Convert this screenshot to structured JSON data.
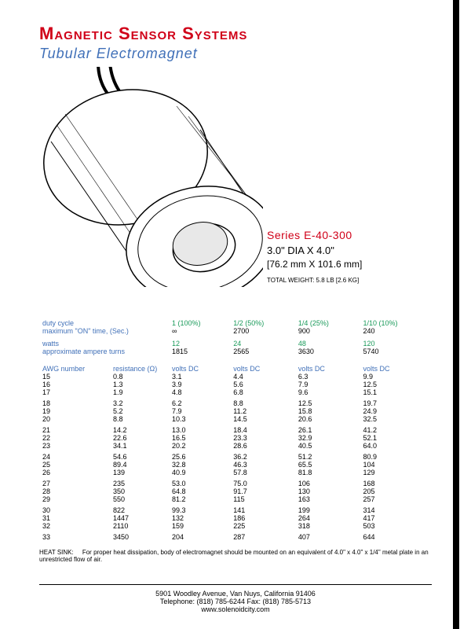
{
  "header": {
    "title": "Magnetic Sensor Systems",
    "subtitle": "Tubular Electromagnet"
  },
  "specs": {
    "series": "Series E-40-300",
    "dims_in": "3.0\" DIA X 4.0\"",
    "dims_mm": "[76.2 mm X 101.6 mm]",
    "weight": "TOTAL WEIGHT:  5.8 LB [2.6 KG]"
  },
  "duty": {
    "label_duty": "duty cycle",
    "label_max_on": "maximum \"ON\" time, (Sec.)",
    "label_watts": "watts",
    "label_amp_turns": "approximate ampere turns",
    "cols": [
      "1 (100%)",
      "1/2 (50%)",
      "1/4 (25%)",
      "1/10 (10%)"
    ],
    "on_time": [
      "∞",
      "2700",
      "900",
      "240"
    ],
    "watts": [
      "12",
      "24",
      "48",
      "120"
    ],
    "amp_turns": [
      "1815",
      "2565",
      "3630",
      "5740"
    ]
  },
  "table": {
    "col_awg": "AWG number",
    "col_res": "resistance (Ω)",
    "col_v": "volts DC",
    "groups": [
      [
        {
          "awg": "15",
          "r": "0.8",
          "v": [
            "3.1",
            "4.4",
            "6.3",
            "9.9"
          ]
        },
        {
          "awg": "16",
          "r": "1.3",
          "v": [
            "3.9",
            "5.6",
            "7.9",
            "12.5"
          ]
        },
        {
          "awg": "17",
          "r": "1.9",
          "v": [
            "4.8",
            "6.8",
            "9.6",
            "15.1"
          ]
        }
      ],
      [
        {
          "awg": "18",
          "r": "3.2",
          "v": [
            "6.2",
            "8.8",
            "12.5",
            "19.7"
          ]
        },
        {
          "awg": "19",
          "r": "5.2",
          "v": [
            "7.9",
            "11.2",
            "15.8",
            "24.9"
          ]
        },
        {
          "awg": "20",
          "r": "8.8",
          "v": [
            "10.3",
            "14.5",
            "20.6",
            "32.5"
          ]
        }
      ],
      [
        {
          "awg": "21",
          "r": "14.2",
          "v": [
            "13.0",
            "18.4",
            "26.1",
            "41.2"
          ]
        },
        {
          "awg": "22",
          "r": "22.6",
          "v": [
            "16.5",
            "23.3",
            "32.9",
            "52.1"
          ]
        },
        {
          "awg": "23",
          "r": "34.1",
          "v": [
            "20.2",
            "28.6",
            "40.5",
            "64.0"
          ]
        }
      ],
      [
        {
          "awg": "24",
          "r": "54.6",
          "v": [
            "25.6",
            "36.2",
            "51.2",
            "80.9"
          ]
        },
        {
          "awg": "25",
          "r": "89.4",
          "v": [
            "32.8",
            "46.3",
            "65.5",
            "104"
          ]
        },
        {
          "awg": "26",
          "r": "139",
          "v": [
            "40.9",
            "57.8",
            "81.8",
            "129"
          ]
        }
      ],
      [
        {
          "awg": "27",
          "r": "235",
          "v": [
            "53.0",
            "75.0",
            "106",
            "168"
          ]
        },
        {
          "awg": "28",
          "r": "350",
          "v": [
            "64.8",
            "91.7",
            "130",
            "205"
          ]
        },
        {
          "awg": "29",
          "r": "550",
          "v": [
            "81.2",
            "115",
            "163",
            "257"
          ]
        }
      ],
      [
        {
          "awg": "30",
          "r": "822",
          "v": [
            "99.3",
            "141",
            "199",
            "314"
          ]
        },
        {
          "awg": "31",
          "r": "1447",
          "v": [
            "132",
            "186",
            "264",
            "417"
          ]
        },
        {
          "awg": "32",
          "r": "2110",
          "v": [
            "159",
            "225",
            "318",
            "503"
          ]
        }
      ],
      [
        {
          "awg": "33",
          "r": "3450",
          "v": [
            "204",
            "287",
            "407",
            "644"
          ]
        }
      ]
    ]
  },
  "heatsink": {
    "label": "HEAT SINK:",
    "text": "For proper heat dissipation, body of electromagnet should be mounted on an equivalent of 4.0\" x 4.0\" x 1/4\" metal plate in an unrestricted flow of air."
  },
  "footer": {
    "addr": "5901 Woodley Avenue,   Van Nuys, California   91406",
    "phone": "Telephone: (818) 785-6244     Fax: (818) 785-5713",
    "web": "www.solenoidcity.com"
  }
}
